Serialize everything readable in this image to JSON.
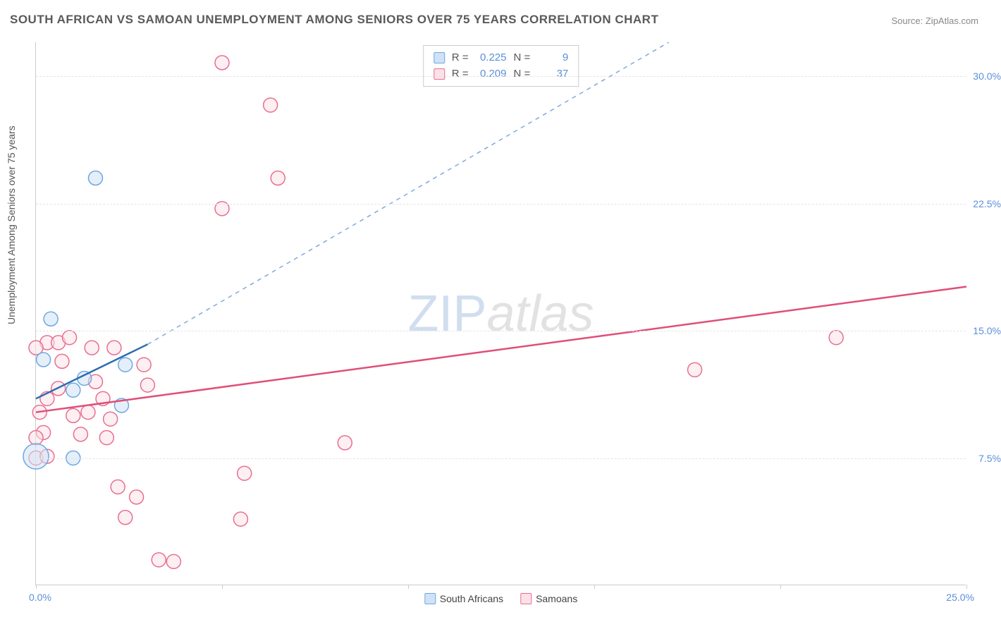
{
  "title": "SOUTH AFRICAN VS SAMOAN UNEMPLOYMENT AMONG SENIORS OVER 75 YEARS CORRELATION CHART",
  "source": "Source: ZipAtlas.com",
  "y_axis_label": "Unemployment Among Seniors over 75 years",
  "watermark": {
    "zip": "ZIP",
    "atlas": "atlas"
  },
  "chart": {
    "type": "scatter",
    "background_color": "#ffffff",
    "grid_color": "#e5e5e5",
    "axis_color": "#cccccc",
    "tick_label_color": "#5b8fd9",
    "tick_fontsize": 14,
    "xlim": [
      0,
      25
    ],
    "ylim": [
      0,
      32
    ],
    "x_ticks": [
      0,
      5,
      10,
      15,
      20,
      25
    ],
    "x_tick_labels": {
      "0": "0.0%",
      "25": "25.0%"
    },
    "y_grid": [
      7.5,
      15.0,
      22.5,
      30.0
    ],
    "y_tick_labels": [
      "7.5%",
      "15.0%",
      "22.5%",
      "30.0%"
    ],
    "series": {
      "south_africans": {
        "label": "South Africans",
        "marker_fill": "#cfe2f6",
        "marker_stroke": "#6ea8e0",
        "marker_radius": 10,
        "trend_color": "#2b6cb0",
        "trend_dash_color": "#7fa9e0",
        "trend_width": 2.5,
        "trend_segment": {
          "x1": 0,
          "y1": 11.0,
          "x2": 3.0,
          "y2": 14.2
        },
        "trend_extrapolate": {
          "x1": 3.0,
          "y1": 14.2,
          "x2": 17.0,
          "y2": 32.0
        },
        "R": "0.225",
        "N": "9",
        "points": [
          {
            "x": 1.6,
            "y": 24.0,
            "r": 10
          },
          {
            "x": 0.4,
            "y": 15.7,
            "r": 10
          },
          {
            "x": 0.2,
            "y": 13.3,
            "r": 10
          },
          {
            "x": 2.4,
            "y": 13.0,
            "r": 10
          },
          {
            "x": 1.3,
            "y": 12.2,
            "r": 10
          },
          {
            "x": 1.0,
            "y": 11.5,
            "r": 10
          },
          {
            "x": 2.3,
            "y": 10.6,
            "r": 10
          },
          {
            "x": 0.0,
            "y": 7.6,
            "r": 18
          },
          {
            "x": 1.0,
            "y": 7.5,
            "r": 10
          }
        ]
      },
      "samoans": {
        "label": "Samoans",
        "marker_fill": "#fbe1e8",
        "marker_stroke": "#e86f91",
        "marker_radius": 10,
        "trend_color": "#e04e78",
        "trend_width": 2.5,
        "trend_segment": {
          "x1": 0,
          "y1": 10.2,
          "x2": 25,
          "y2": 17.6
        },
        "R": "0.209",
        "N": "37",
        "points": [
          {
            "x": 5.0,
            "y": 30.8,
            "r": 10
          },
          {
            "x": 6.3,
            "y": 28.3,
            "r": 10
          },
          {
            "x": 6.5,
            "y": 24.0,
            "r": 10
          },
          {
            "x": 5.0,
            "y": 22.2,
            "r": 10
          },
          {
            "x": 0.3,
            "y": 14.3,
            "r": 10
          },
          {
            "x": 0.6,
            "y": 14.3,
            "r": 10
          },
          {
            "x": 0.9,
            "y": 14.6,
            "r": 10
          },
          {
            "x": 1.5,
            "y": 14.0,
            "r": 10
          },
          {
            "x": 2.1,
            "y": 14.0,
            "r": 10
          },
          {
            "x": 21.5,
            "y": 14.6,
            "r": 10
          },
          {
            "x": 17.7,
            "y": 12.7,
            "r": 10
          },
          {
            "x": 2.9,
            "y": 13.0,
            "r": 10
          },
          {
            "x": 3.0,
            "y": 11.8,
            "r": 10
          },
          {
            "x": 1.6,
            "y": 12.0,
            "r": 10
          },
          {
            "x": 1.8,
            "y": 11.0,
            "r": 10
          },
          {
            "x": 0.6,
            "y": 11.6,
            "r": 10
          },
          {
            "x": 0.3,
            "y": 11.0,
            "r": 10
          },
          {
            "x": 0.1,
            "y": 10.2,
            "r": 10
          },
          {
            "x": 1.0,
            "y": 10.0,
            "r": 10
          },
          {
            "x": 1.4,
            "y": 10.2,
            "r": 10
          },
          {
            "x": 2.0,
            "y": 9.8,
            "r": 10
          },
          {
            "x": 0.2,
            "y": 9.0,
            "r": 10
          },
          {
            "x": 0.0,
            "y": 8.7,
            "r": 10
          },
          {
            "x": 8.3,
            "y": 8.4,
            "r": 10
          },
          {
            "x": 0.0,
            "y": 7.5,
            "r": 10
          },
          {
            "x": 0.3,
            "y": 7.6,
            "r": 10
          },
          {
            "x": 5.6,
            "y": 6.6,
            "r": 10
          },
          {
            "x": 2.2,
            "y": 5.8,
            "r": 10
          },
          {
            "x": 2.7,
            "y": 5.2,
            "r": 10
          },
          {
            "x": 2.4,
            "y": 4.0,
            "r": 10
          },
          {
            "x": 5.5,
            "y": 3.9,
            "r": 10
          },
          {
            "x": 3.3,
            "y": 1.5,
            "r": 10
          },
          {
            "x": 3.7,
            "y": 1.4,
            "r": 10
          },
          {
            "x": 0.7,
            "y": 13.2,
            "r": 10
          },
          {
            "x": 0.0,
            "y": 14.0,
            "r": 10
          },
          {
            "x": 1.2,
            "y": 8.9,
            "r": 10
          },
          {
            "x": 1.9,
            "y": 8.7,
            "r": 10
          }
        ]
      }
    },
    "stats_labels": {
      "R": "R =",
      "N": "N ="
    },
    "legend_bottom_labels": {
      "sa": "South Africans",
      "sam": "Samoans"
    }
  }
}
